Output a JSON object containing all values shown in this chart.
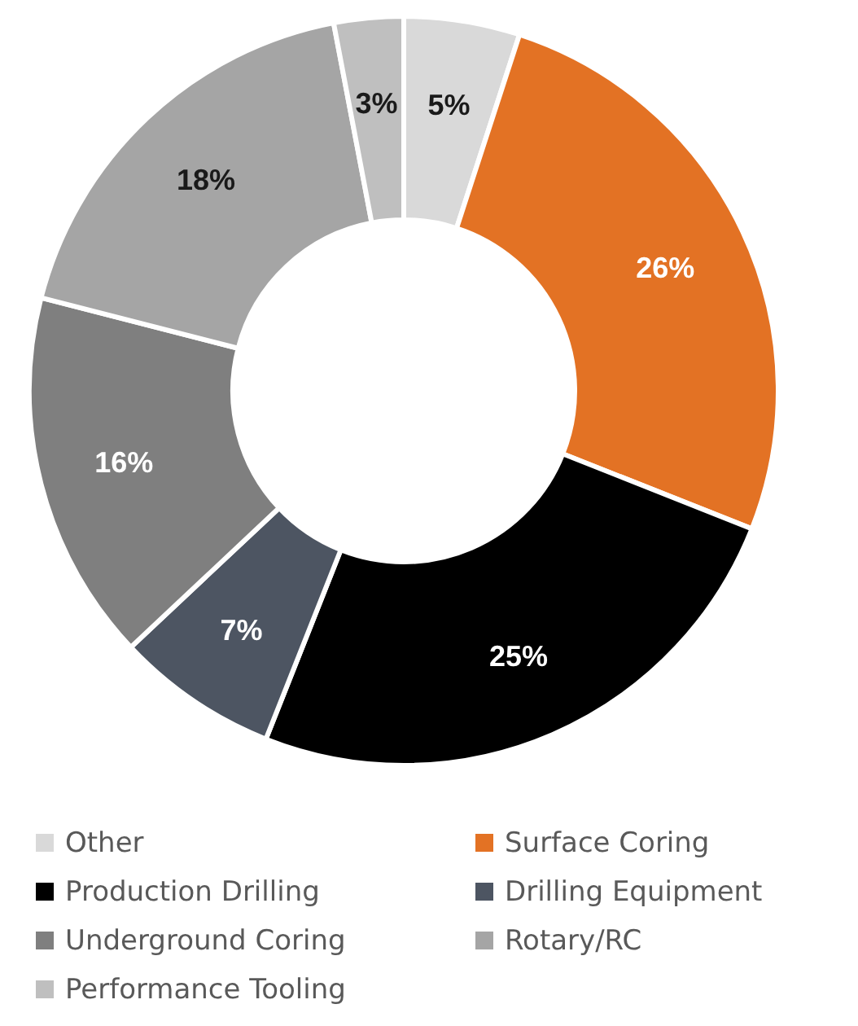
{
  "chart_data": {
    "type": "donut",
    "categories": [
      "Other",
      "Surface Coring",
      "Production Drilling",
      "Drilling Equipment",
      "Underground Coring",
      "Rotary/RC",
      "Performance Tooling"
    ],
    "values": [
      5,
      26,
      25,
      7,
      16,
      18,
      3
    ],
    "colors": [
      "#d9d9d9",
      "#e37224",
      "#000000",
      "#4d5562",
      "#7f7f7f",
      "#a5a5a5",
      "#bfbfbf"
    ],
    "value_labels": [
      "5%",
      "26%",
      "25%",
      "7%",
      "16%",
      "18%",
      "3%"
    ],
    "legend": "bottom"
  }
}
